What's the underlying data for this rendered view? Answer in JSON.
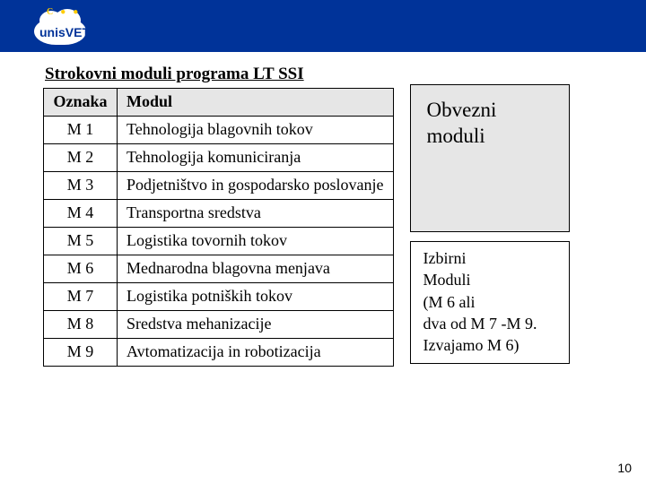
{
  "logo": {
    "text": "unisVET",
    "dot1": "C",
    "dot2": "●",
    "dot3": "●"
  },
  "title": "Strokovni moduli programa LT SSI",
  "table": {
    "headers": {
      "oznaka": "Oznaka",
      "modul": "Modul"
    },
    "rows": [
      {
        "oznaka": "M 1",
        "modul": "Tehnologija blagovnih tokov"
      },
      {
        "oznaka": "M 2",
        "modul": "Tehnologija komuniciranja"
      },
      {
        "oznaka": "M 3",
        "modul": "Podjetništvo in gospodarsko poslovanje"
      },
      {
        "oznaka": "M 4",
        "modul": "Transportna sredstva"
      },
      {
        "oznaka": "M 5",
        "modul": "Logistika tovornih tokov"
      },
      {
        "oznaka": "M 6",
        "modul": "Mednarodna blagovna menjava"
      },
      {
        "oznaka": "M 7",
        "modul": "Logistika potniških tokov"
      },
      {
        "oznaka": "M 8",
        "modul": "Sredstva mehanizacije"
      },
      {
        "oznaka": "M 9",
        "modul": "Avtomatizacija in robotizacija"
      }
    ]
  },
  "boxes": {
    "obvezni": {
      "line1": "Obvezni",
      "line2": "moduli"
    },
    "izbirni": {
      "l1": "Izbirni",
      "l2": "Moduli",
      "l3": "(M 6 ali",
      "l4": "dva od M 7 -M 9.",
      "l5": "Izvajamo M 6)"
    }
  },
  "page_number": "10",
  "colors": {
    "header_bg": "#003399",
    "box_gray": "#e6e6e6",
    "white": "#ffffff",
    "black": "#000000",
    "accent": "#ffcc00"
  }
}
